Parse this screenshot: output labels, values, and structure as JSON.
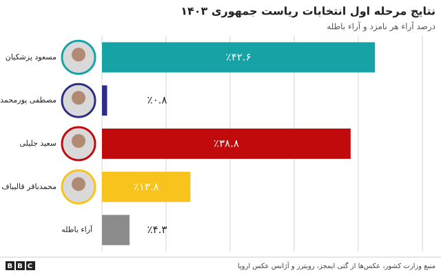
{
  "chart_data": {
    "type": "bar",
    "orientation": "horizontal",
    "title": "نتایج مرحله اول انتخابات ریاست جمهوری ۱۴۰۳",
    "subtitle": "درصد آراء هر نامزد و آراء باطله",
    "categories": [
      "مسعود پزشکیان",
      "مصطفی پورمحمدی",
      "سعید جلیلی",
      "محمدباقر قالیباف",
      "آراء باطله"
    ],
    "values": [
      42.6,
      0.8,
      38.8,
      13.8,
      4.3
    ],
    "value_labels": [
      "٪۴۲.۶",
      "٪۰.۸",
      "٪۳۸.۸",
      "٪۱۳.۸",
      "٪۴.۳"
    ],
    "colors": [
      "#17a2a6",
      "#2c2f84",
      "#c00a0c",
      "#f8c31d",
      "#8c8c8c"
    ],
    "xlim": [
      0,
      50
    ],
    "xticks": [
      0,
      10,
      20,
      30,
      40,
      50
    ],
    "grid": true,
    "source": "منبع وزارت کشور، عکس‌ها از گتی ایمجز، رویترز و آژانس عکس اروپا",
    "logo": "BBC"
  }
}
